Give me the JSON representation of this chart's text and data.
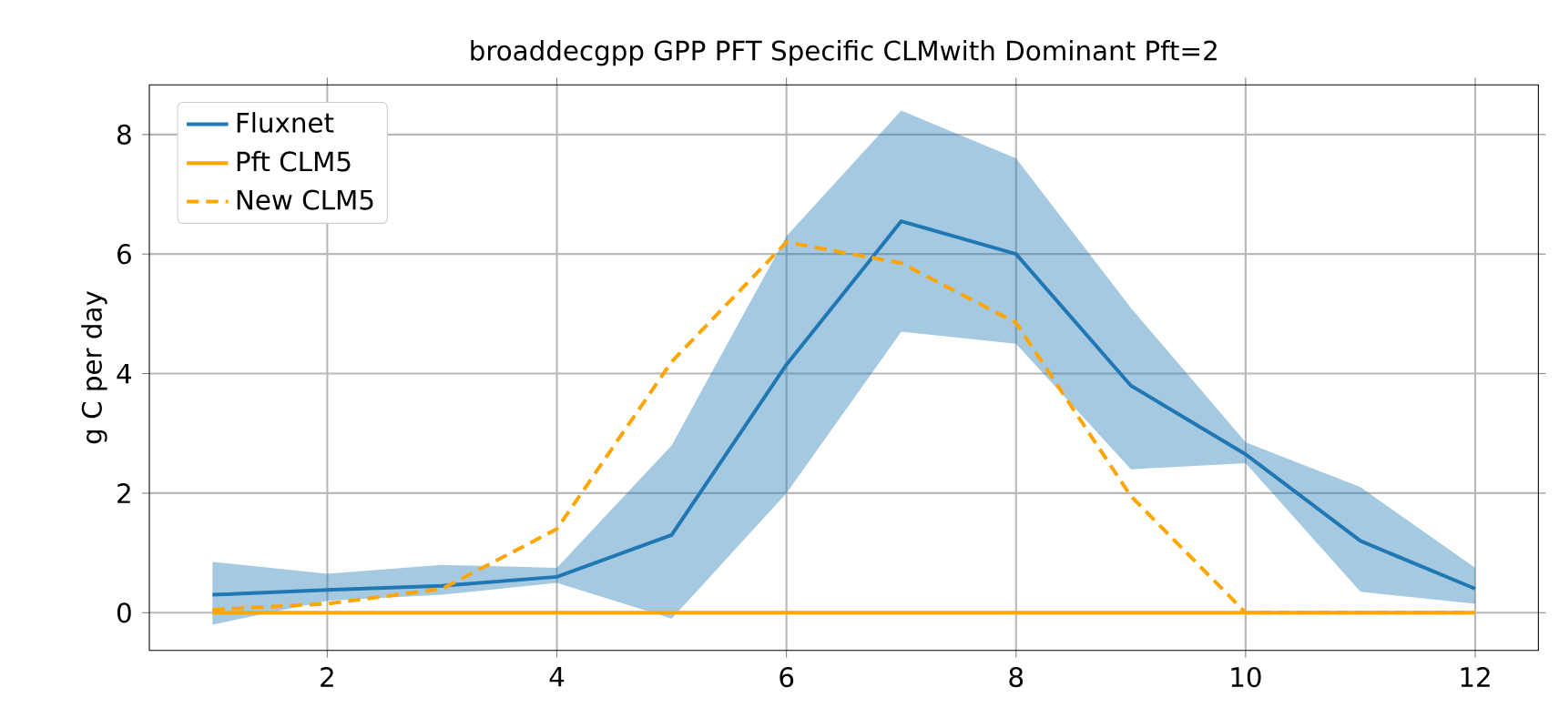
{
  "chart_data": {
    "type": "line",
    "title": "broaddecgpp GPP PFT Specific CLMwith Dominant Pft=2",
    "ylabel": "g C per day",
    "x": [
      1,
      2,
      3,
      4,
      5,
      6,
      7,
      8,
      9,
      10,
      11,
      12
    ],
    "series": [
      {
        "name": "Fluxnet",
        "color": "#1f77b4",
        "line_style": "solid",
        "values": [
          0.3,
          0.38,
          0.45,
          0.6,
          1.3,
          4.15,
          6.55,
          6.0,
          3.8,
          2.65,
          1.2,
          0.4
        ],
        "lower": [
          -0.2,
          0.2,
          0.3,
          0.5,
          -0.1,
          2.0,
          4.7,
          4.5,
          2.4,
          2.5,
          0.35,
          0.15
        ],
        "upper": [
          0.85,
          0.65,
          0.8,
          0.75,
          2.8,
          6.3,
          8.4,
          7.6,
          5.1,
          2.85,
          2.1,
          0.75
        ]
      },
      {
        "name": "Pft CLM5",
        "color": "#ffa500",
        "line_style": "solid",
        "values": [
          0,
          0,
          0,
          0,
          0,
          0,
          0,
          0,
          0,
          0,
          0,
          0
        ]
      },
      {
        "name": "New CLM5",
        "color": "#ffa500",
        "line_style": "dashed",
        "values": [
          0.05,
          0.15,
          0.4,
          1.4,
          4.2,
          6.2,
          5.85,
          4.85,
          1.95,
          0,
          0,
          0
        ]
      }
    ],
    "xlim": [
      0.45,
      12.55
    ],
    "ylim": [
      -0.63,
      8.83
    ],
    "xticks": [
      2,
      4,
      6,
      8,
      10,
      12
    ],
    "yticks": [
      0,
      2,
      4,
      6,
      8
    ],
    "grid": true,
    "legend": "top left"
  }
}
